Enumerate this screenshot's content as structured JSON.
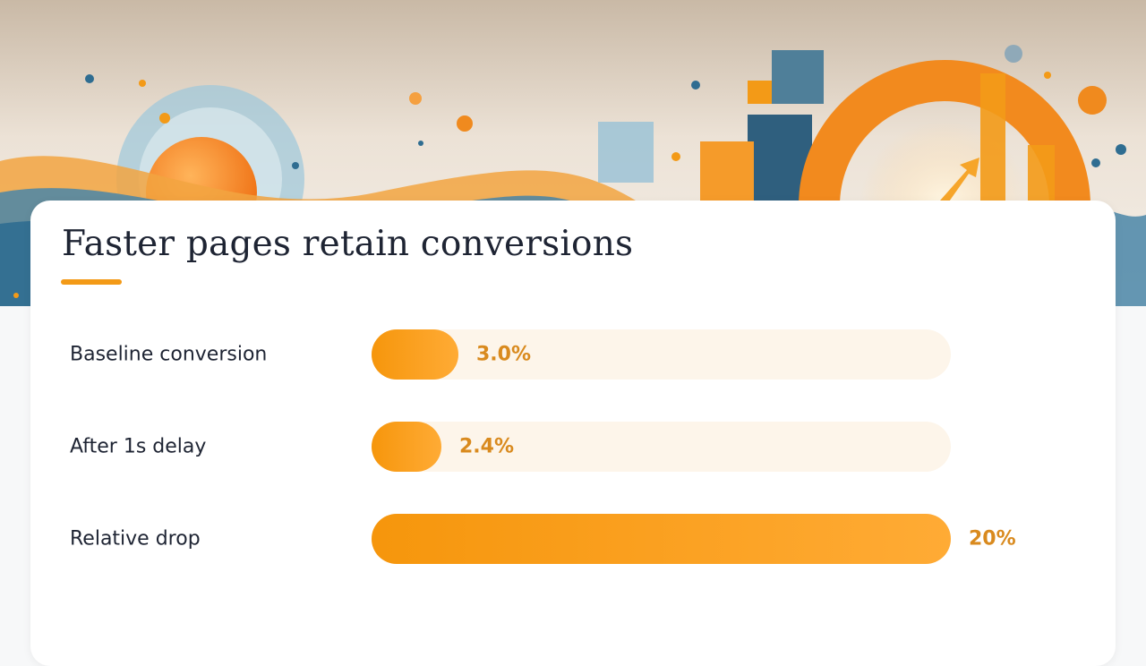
{
  "title": "Faster pages retain conversions",
  "colors": {
    "accent": "#f39a17",
    "bar_start": "#f6960c",
    "bar_end": "#ffab35",
    "track": "#fdf5ea",
    "value_text": "#d98a1e",
    "text": "#1e2433"
  },
  "chart_data": {
    "type": "bar",
    "orientation": "horizontal",
    "title": "Faster pages retain conversions",
    "xlabel": "",
    "ylabel": "",
    "grid": false,
    "bars": [
      {
        "category": "Baseline conversion",
        "value": 3.0,
        "label": "3.0%",
        "fill_fraction": 0.15
      },
      {
        "category": "After 1s delay",
        "value": 2.4,
        "label": "2.4%",
        "fill_fraction": 0.12
      },
      {
        "category": "Relative drop",
        "value": 20,
        "label": "20%",
        "fill_fraction": 1.0
      }
    ]
  }
}
